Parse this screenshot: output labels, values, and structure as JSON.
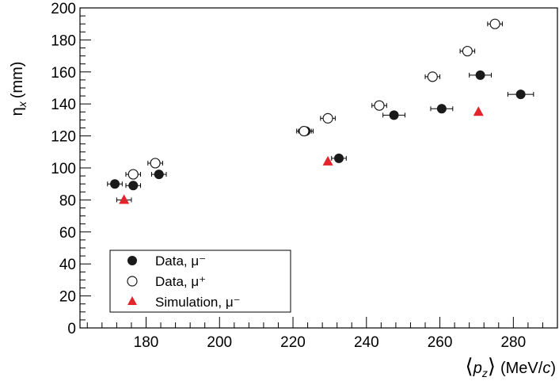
{
  "chart_data": {
    "type": "scatter",
    "title": "",
    "xlabel": {
      "main": "p",
      "sub": "z",
      "unit_prefix": "(MeV/",
      "unit_var": "c",
      "unit_suffix": ")"
    },
    "ylabel": {
      "main": "η",
      "sub": "x",
      "unit": "(mm)"
    },
    "xlim": [
      162,
      292
    ],
    "ylim": [
      0,
      200
    ],
    "x_ticks": [
      180,
      200,
      220,
      240,
      260,
      280
    ],
    "y_ticks": [
      0,
      20,
      40,
      60,
      80,
      100,
      120,
      140,
      160,
      180,
      200
    ],
    "grid": false,
    "legend_position": "bottom-left",
    "series": [
      {
        "name": "Data, μ⁻",
        "marker": "filled-circle",
        "color": "#1a1a1a",
        "points": [
          {
            "x": 171.5,
            "y": 90,
            "xerr": 2
          },
          {
            "x": 176.5,
            "y": 89,
            "xerr": 2
          },
          {
            "x": 183.5,
            "y": 96,
            "xerr": 2
          },
          {
            "x": 223.5,
            "y": 123,
            "xerr": 2
          },
          {
            "x": 232.5,
            "y": 106,
            "xerr": 2
          },
          {
            "x": 247.5,
            "y": 133,
            "xerr": 3
          },
          {
            "x": 260.5,
            "y": 137,
            "xerr": 3
          },
          {
            "x": 271.0,
            "y": 158,
            "xerr": 3
          },
          {
            "x": 282.0,
            "y": 146,
            "xerr": 3.5
          }
        ]
      },
      {
        "name": "Data, μ⁺",
        "marker": "open-circle",
        "color": "#1a1a1a",
        "points": [
          {
            "x": 176.5,
            "y": 96,
            "xerr": 2
          },
          {
            "x": 182.5,
            "y": 103,
            "xerr": 2
          },
          {
            "x": 223.0,
            "y": 123,
            "xerr": 2
          },
          {
            "x": 229.5,
            "y": 131,
            "xerr": 2
          },
          {
            "x": 243.5,
            "y": 139,
            "xerr": 2
          },
          {
            "x": 258.0,
            "y": 157,
            "xerr": 2
          },
          {
            "x": 267.5,
            "y": 173,
            "xerr": 2
          },
          {
            "x": 275.0,
            "y": 190,
            "xerr": 2
          }
        ]
      },
      {
        "name": "Simulation, μ⁻",
        "marker": "filled-triangle",
        "color": "#e3242b",
        "points": [
          {
            "x": 174.0,
            "y": 80,
            "xerr": 2
          },
          {
            "x": 229.5,
            "y": 104,
            "xerr": 0
          },
          {
            "x": 270.5,
            "y": 135,
            "xerr": 0
          }
        ]
      }
    ]
  }
}
